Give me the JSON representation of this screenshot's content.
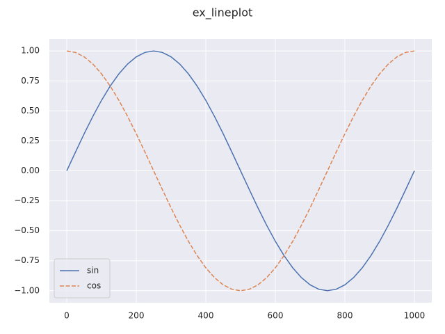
{
  "chart_data": {
    "type": "line",
    "title": "ex_lineplot",
    "x": [
      0,
      25,
      50,
      75,
      100,
      125,
      150,
      175,
      200,
      225,
      250,
      275,
      300,
      325,
      350,
      375,
      400,
      425,
      450,
      475,
      500,
      525,
      550,
      575,
      600,
      625,
      650,
      675,
      700,
      725,
      750,
      775,
      800,
      825,
      850,
      875,
      900,
      925,
      950,
      975,
      1000
    ],
    "series": [
      {
        "name": "sin",
        "color": "#4c72b0",
        "dash": false,
        "values": [
          0,
          0.156,
          0.309,
          0.454,
          0.588,
          0.707,
          0.809,
          0.891,
          0.951,
          0.988,
          1,
          0.988,
          0.951,
          0.891,
          0.809,
          0.707,
          0.588,
          0.454,
          0.309,
          0.156,
          0,
          -0.156,
          -0.309,
          -0.454,
          -0.588,
          -0.707,
          -0.809,
          -0.891,
          -0.951,
          -0.988,
          -1,
          -0.988,
          -0.951,
          -0.891,
          -0.809,
          -0.707,
          -0.588,
          -0.454,
          -0.309,
          -0.156,
          0
        ]
      },
      {
        "name": "cos",
        "color": "#dd8452",
        "dash": true,
        "values": [
          1,
          0.988,
          0.951,
          0.891,
          0.809,
          0.707,
          0.588,
          0.454,
          0.309,
          0.156,
          0,
          -0.156,
          -0.309,
          -0.454,
          -0.588,
          -0.707,
          -0.809,
          -0.891,
          -0.951,
          -0.988,
          -1,
          -0.988,
          -0.951,
          -0.891,
          -0.809,
          -0.707,
          -0.588,
          -0.454,
          -0.309,
          -0.156,
          0,
          0.156,
          0.309,
          0.454,
          0.588,
          0.707,
          0.809,
          0.891,
          0.951,
          0.988,
          1
        ]
      }
    ],
    "xlim": [
      -50,
      1050
    ],
    "ylim": [
      -1.1,
      1.1
    ],
    "xticks": [
      0,
      200,
      400,
      600,
      800,
      1000
    ],
    "yticks": [
      {
        "value": 1,
        "label": "1.00"
      },
      {
        "value": 0.75,
        "label": "0.75"
      },
      {
        "value": 0.5,
        "label": "0.50"
      },
      {
        "value": 0.25,
        "label": "0.25"
      },
      {
        "value": 0,
        "label": "0.00"
      },
      {
        "value": -0.25,
        "label": "−0.25"
      },
      {
        "value": -0.5,
        "label": "−0.50"
      },
      {
        "value": -0.75,
        "label": "−0.75"
      },
      {
        "value": -1,
        "label": "−1.00"
      }
    ],
    "grid": true,
    "legend": "lower left"
  }
}
